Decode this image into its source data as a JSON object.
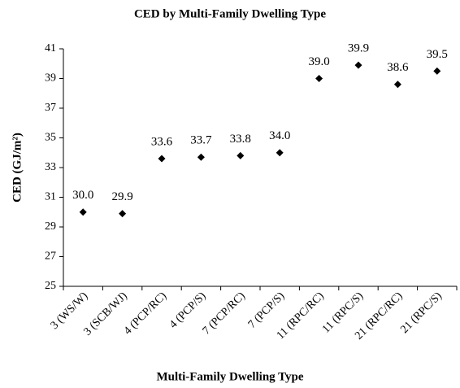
{
  "chart_data": {
    "type": "scatter",
    "title": "CED  by Multi-Family Dwelling Type",
    "x_label": "Multi-Family Dwelling Type",
    "y_label": "CED (GJ/m²)",
    "categories": [
      "3 (WS/W)",
      "3 (SCB/WJ)",
      "4 (PCP/RC)",
      "4 (PCP/S)",
      "7 (PCP/RC)",
      "7 (PCP/S)",
      "11 (RPC/RC)",
      "11 (RPC/S)",
      "21 (RPC/RC)",
      "21 (RPC/S)"
    ],
    "values": [
      30.0,
      29.9,
      33.6,
      33.7,
      33.8,
      34.0,
      39.0,
      39.9,
      38.6,
      39.5
    ],
    "value_labels": [
      "30.0",
      "29.9",
      "33.6",
      "33.7",
      "33.8",
      "34.0",
      "39.0",
      "39.9",
      "38.6",
      "39.5"
    ],
    "color": "#000000",
    "ylim": [
      25,
      41
    ],
    "yticks": [
      25,
      27,
      29,
      31,
      33,
      35,
      37,
      39,
      41
    ],
    "grid": false
  }
}
